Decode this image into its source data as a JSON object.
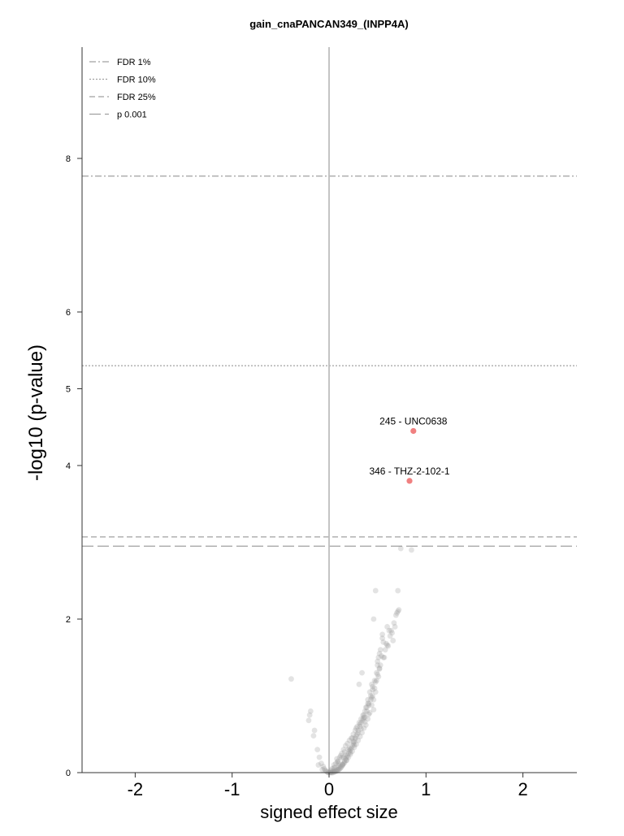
{
  "chart_data": {
    "type": "scatter",
    "title": "gain_cnaPANCAN349_(INPP4A)",
    "xlabel": "signed effect size",
    "ylabel": "-log10 (p-value)",
    "xlim": [
      -2.5,
      2.55
    ],
    "ylim": [
      0,
      9.6
    ],
    "x_ticks": [
      -2,
      -1,
      0,
      1,
      2
    ],
    "x_tick_labels": [
      "-2",
      "-1",
      "0",
      "1",
      "2"
    ],
    "y_ticks": [
      0,
      2,
      4,
      5,
      6,
      8
    ],
    "y_tick_labels": [
      "0",
      "2",
      "4",
      "5",
      "6",
      "8"
    ],
    "grid": false,
    "legend_position": "top-left",
    "thresholds": [
      {
        "name": "FDR 1%",
        "y": 7.77,
        "style": "dash-dot",
        "color": "#a0a0a0"
      },
      {
        "name": "FDR 10%",
        "y": 5.3,
        "style": "dotted",
        "color": "#a0a0a0"
      },
      {
        "name": "FDR 25%",
        "y": 3.07,
        "style": "dashed",
        "color": "#a0a0a0"
      },
      {
        "name": "p 0.001",
        "y": 2.95,
        "style": "long-dash",
        "color": "#a0a0a0"
      }
    ],
    "colors": {
      "background_points": "#9a9a9a",
      "highlight_points": "#f08080",
      "zero_line": "#bdbdbd",
      "axis": "#333333"
    },
    "highlighted": [
      {
        "x": 0.87,
        "y": 4.45,
        "label": "245 - UNC0638"
      },
      {
        "x": 0.83,
        "y": 3.8,
        "label": "346 - THZ-2-102-1"
      }
    ],
    "series": [
      {
        "x": [
          -0.39,
          0.74,
          0.85,
          0.71,
          0.48,
          0.72,
          0.7,
          0.68,
          0.66,
          0.62,
          0.58,
          0.56,
          0.52,
          0.5,
          0.47,
          0.45,
          0.43,
          0.41,
          0.39,
          0.37,
          0.6,
          0.55,
          0.53,
          0.51,
          0.49,
          0.44,
          0.42,
          0.4,
          0.38,
          0.36,
          0.35,
          0.33,
          0.32,
          0.3,
          0.29,
          0.28,
          0.27,
          0.26,
          0.25,
          0.24,
          0.23,
          0.22,
          0.21,
          0.2,
          0.19,
          0.18,
          0.17,
          0.16,
          0.15,
          0.14,
          0.13,
          0.12,
          0.11,
          0.1,
          0.09,
          0.08,
          0.07,
          0.06,
          0.05,
          0.04,
          0.03,
          0.02,
          0.01,
          -0.01,
          -0.02,
          -0.03,
          -0.04,
          -0.05,
          -0.06,
          -0.08,
          -0.1,
          -0.12,
          -0.15,
          -0.2,
          -0.21,
          -0.19,
          -0.16,
          0.46,
          0.34,
          0.31,
          0.48,
          0.5,
          0.52,
          0.55,
          0.46,
          0.44,
          0.42,
          0.4,
          0.38,
          0.36,
          0.34,
          0.32,
          0.3,
          0.28,
          0.26,
          0.24,
          0.22,
          0.2,
          0.18,
          0.16,
          0.14,
          0.12,
          0.1,
          0.08,
          0.06,
          0.04,
          0.02,
          0.0,
          0.03,
          0.05,
          0.07,
          0.09,
          0.11,
          0.13,
          0.15,
          0.17,
          0.19,
          0.21,
          0.23,
          0.25,
          0.27,
          0.29,
          0.31,
          0.33,
          0.35,
          0.37,
          0.39,
          0.41,
          0.43,
          0.45,
          0.47,
          0.49,
          0.51,
          0.53,
          0.57,
          0.61,
          0.64,
          0.67,
          0.71,
          0.69,
          0.63,
          0.59,
          0.54,
          0.5,
          0.45,
          0.4,
          0.35,
          0.3,
          0.25,
          0.2,
          0.15,
          0.1,
          0.05,
          0.08,
          0.12,
          0.16,
          0.24,
          0.28,
          0.32,
          0.36,
          0.44,
          0.48,
          0.52,
          0.56,
          0.6,
          0.65,
          0.09,
          0.13,
          0.17,
          0.21,
          0.27,
          0.33,
          0.37,
          0.41,
          0.46,
          -0.07,
          -0.11,
          0.02,
          0.06,
          0.1,
          0.14,
          0.18,
          0.22,
          0.26
        ],
        "y": [
          1.22,
          2.92,
          2.9,
          2.37,
          2.37,
          2.12,
          2.08,
          1.9,
          1.72,
          1.85,
          1.6,
          1.7,
          1.35,
          1.45,
          1.2,
          1.08,
          1.0,
          0.88,
          0.8,
          0.72,
          1.9,
          1.75,
          1.6,
          1.5,
          1.3,
          1.15,
          1.05,
          0.95,
          0.85,
          0.75,
          0.7,
          0.65,
          0.6,
          0.55,
          0.5,
          0.48,
          0.45,
          0.4,
          0.38,
          0.35,
          0.32,
          0.3,
          0.28,
          0.25,
          0.22,
          0.2,
          0.18,
          0.15,
          0.12,
          0.1,
          0.08,
          0.06,
          0.05,
          0.04,
          0.03,
          0.02,
          0.02,
          0.01,
          0.01,
          0.0,
          0.0,
          0.0,
          0.0,
          0.0,
          0.01,
          0.02,
          0.03,
          0.05,
          0.08,
          0.12,
          0.2,
          0.3,
          0.55,
          0.75,
          0.68,
          0.8,
          0.48,
          2.0,
          1.3,
          1.15,
          1.05,
          1.4,
          1.55,
          1.8,
          0.95,
          0.88,
          0.78,
          0.7,
          0.62,
          0.58,
          0.52,
          0.47,
          0.42,
          0.37,
          0.33,
          0.28,
          0.24,
          0.2,
          0.16,
          0.13,
          0.1,
          0.08,
          0.06,
          0.04,
          0.03,
          0.02,
          0.01,
          0.0,
          0.05,
          0.1,
          0.12,
          0.15,
          0.2,
          0.25,
          0.3,
          0.35,
          0.38,
          0.42,
          0.45,
          0.5,
          0.55,
          0.6,
          0.65,
          0.7,
          0.75,
          0.8,
          0.85,
          0.9,
          0.95,
          1.0,
          1.1,
          1.2,
          1.25,
          1.4,
          1.5,
          1.65,
          1.85,
          1.95,
          2.1,
          2.05,
          1.78,
          1.68,
          1.52,
          1.28,
          1.12,
          0.9,
          0.68,
          0.52,
          0.4,
          0.3,
          0.2,
          0.12,
          0.06,
          0.18,
          0.22,
          0.27,
          0.45,
          0.58,
          0.63,
          0.72,
          0.98,
          1.18,
          1.36,
          1.5,
          1.66,
          1.82,
          0.14,
          0.19,
          0.23,
          0.32,
          0.44,
          0.57,
          0.66,
          0.76,
          0.82,
          0.04,
          0.1,
          0.03,
          0.07,
          0.09,
          0.11,
          0.16,
          0.26,
          0.36
        ]
      }
    ]
  }
}
